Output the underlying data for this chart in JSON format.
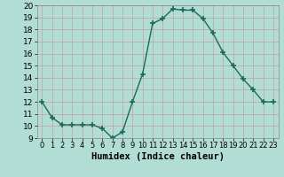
{
  "x": [
    0,
    1,
    2,
    3,
    4,
    5,
    6,
    7,
    8,
    9,
    10,
    11,
    12,
    13,
    14,
    15,
    16,
    17,
    18,
    19,
    20,
    21,
    22,
    23
  ],
  "y": [
    12,
    10.7,
    10.1,
    10.1,
    10.1,
    10.1,
    9.8,
    9.0,
    9.5,
    12.0,
    14.3,
    18.5,
    18.9,
    19.7,
    19.6,
    19.6,
    18.9,
    17.7,
    16.1,
    15.0,
    13.9,
    13.0,
    12.0,
    12.0
  ],
  "line_color": "#1a6b5a",
  "marker": "+",
  "markersize": 4,
  "markeredgewidth": 1.2,
  "linewidth": 1.0,
  "bg_color": "#b2ddd4",
  "grid_color": "#c8ded9",
  "xlabel": "Humidex (Indice chaleur)",
  "xlabel_fontsize": 7.5,
  "tick_fontsize": 6.5,
  "xlim": [
    -0.5,
    23.5
  ],
  "ylim": [
    9,
    20
  ],
  "yticks": [
    9,
    10,
    11,
    12,
    13,
    14,
    15,
    16,
    17,
    18,
    19,
    20
  ],
  "xticks": [
    0,
    1,
    2,
    3,
    4,
    5,
    6,
    7,
    8,
    9,
    10,
    11,
    12,
    13,
    14,
    15,
    16,
    17,
    18,
    19,
    20,
    21,
    22,
    23
  ]
}
